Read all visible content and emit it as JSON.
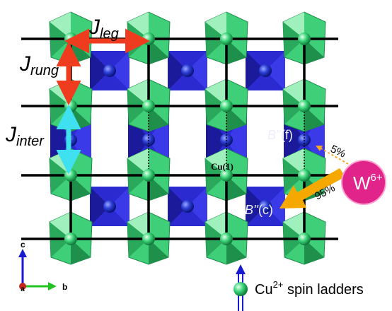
{
  "couplings": [
    {
      "symbol": "J",
      "subscript": "leg"
    },
    {
      "symbol": "J",
      "subscript": "rung"
    },
    {
      "symbol": "J",
      "subscript": "inter"
    }
  ],
  "site_label": "Cu(1)",
  "b_sites": [
    {
      "symbol": "B''",
      "suffix": "(f)"
    },
    {
      "symbol": "B''",
      "suffix": "(c)"
    }
  ],
  "fractions": [
    "5%",
    "95%"
  ],
  "ion": {
    "symbol": "W",
    "charge": "6+"
  },
  "axes": [
    "a",
    "b",
    "c"
  ],
  "legend": {
    "symbol": "Cu",
    "charge": "2+",
    "text": " spin ladders"
  }
}
